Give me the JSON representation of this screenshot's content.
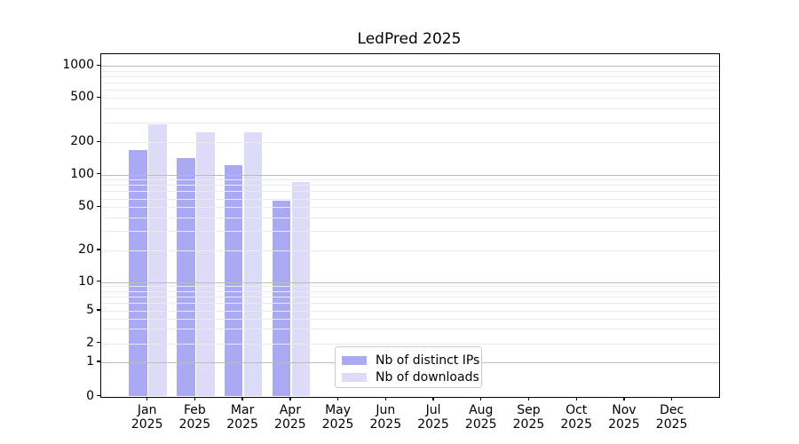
{
  "title": "LedPred 2025",
  "chart_data": {
    "type": "bar",
    "title": "LedPred 2025",
    "scale_y": "symlog",
    "grid": true,
    "xlabel": "",
    "ylabel": "",
    "categories": [
      "Jan",
      "Feb",
      "Mar",
      "Apr",
      "May",
      "Jun",
      "Jul",
      "Aug",
      "Sep",
      "Oct",
      "Nov",
      "Dec"
    ],
    "x_year_label": "2025",
    "series": [
      {
        "name": "Nb of distinct IPs",
        "color": "#a9a9f4",
        "values": [
          168,
          142,
          122,
          57,
          null,
          null,
          null,
          null,
          null,
          null,
          null,
          null
        ]
      },
      {
        "name": "Nb of downloads",
        "color": "#dcdcf8",
        "values": [
          290,
          248,
          248,
          86,
          null,
          null,
          null,
          null,
          null,
          null,
          null,
          null
        ]
      }
    ],
    "yticks": [
      0,
      1,
      2,
      5,
      10,
      20,
      50,
      100,
      200,
      500,
      1000
    ],
    "ylim": [
      0,
      1280
    ],
    "legend_position": "bottom-center",
    "colors": {
      "axis": "#000000",
      "major_grid": "#bcbcbc",
      "minor_grid": "#ebebeb",
      "background": "#ffffff"
    }
  }
}
